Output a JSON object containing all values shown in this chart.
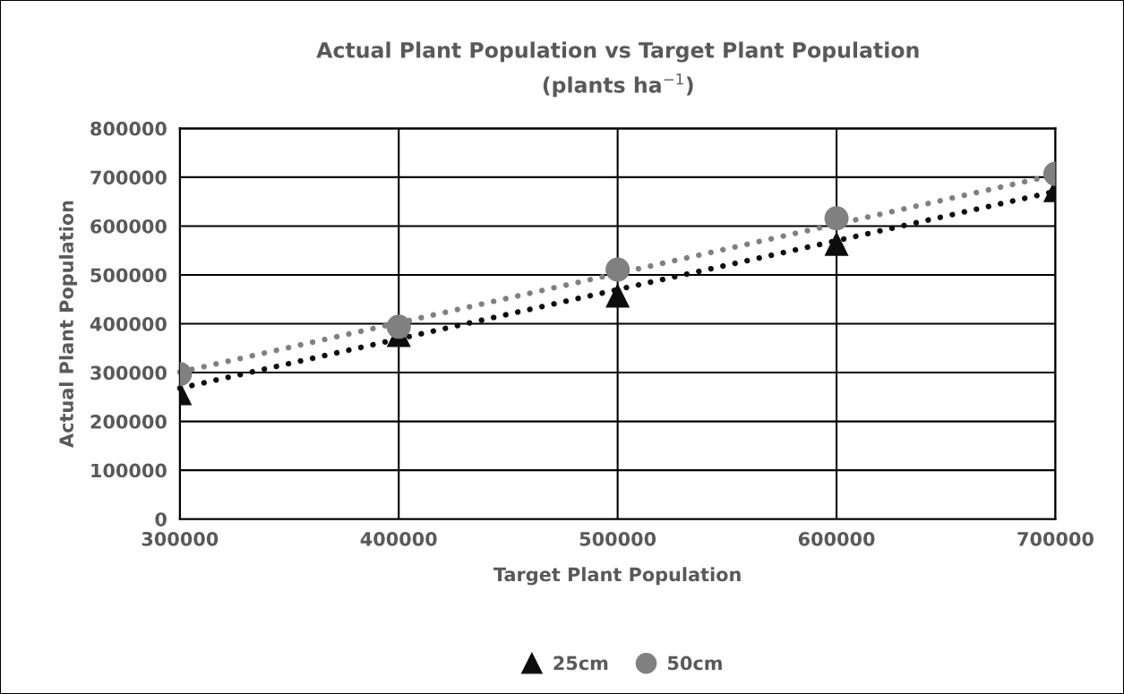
{
  "chart_data": {
    "type": "scatter",
    "title": "Actual Plant Population vs Target Plant Population\n(plants ha$^{−1}$)",
    "xlabel": "Target Plant Population",
    "ylabel": "Actual Plant Population",
    "x": [
      300000,
      400000,
      500000,
      600000,
      700000
    ],
    "series": [
      {
        "name": "25cm",
        "color": "#0d0d0d",
        "marker": "triangle",
        "values": [
          258000,
          377000,
          458000,
          564000,
          674000
        ]
      },
      {
        "name": "50cm",
        "color": "#808080",
        "marker": "circle",
        "values": [
          297000,
          394000,
          511000,
          616000,
          707000
        ]
      },
      {
        "type": "line",
        "color": "#0d0d0d",
        "line_style": "dotted",
        "marker": "none",
        "values": [
          268000,
          369000,
          470000,
          570000,
          671000
        ]
      },
      {
        "type": "line",
        "color": "#808080",
        "line_style": "dotted",
        "marker": "none",
        "values": [
          301000,
          402000,
          503000,
          604000,
          705000
        ]
      }
    ],
    "xlim": [
      300000,
      700000
    ],
    "xticks": [
      300000,
      400000,
      500000,
      600000,
      700000
    ],
    "ylim": [
      0,
      800000
    ],
    "yticks": [
      0,
      100000,
      200000,
      300000,
      400000,
      500000,
      600000,
      700000,
      800000
    ],
    "grid": true,
    "legend": "bottom"
  }
}
